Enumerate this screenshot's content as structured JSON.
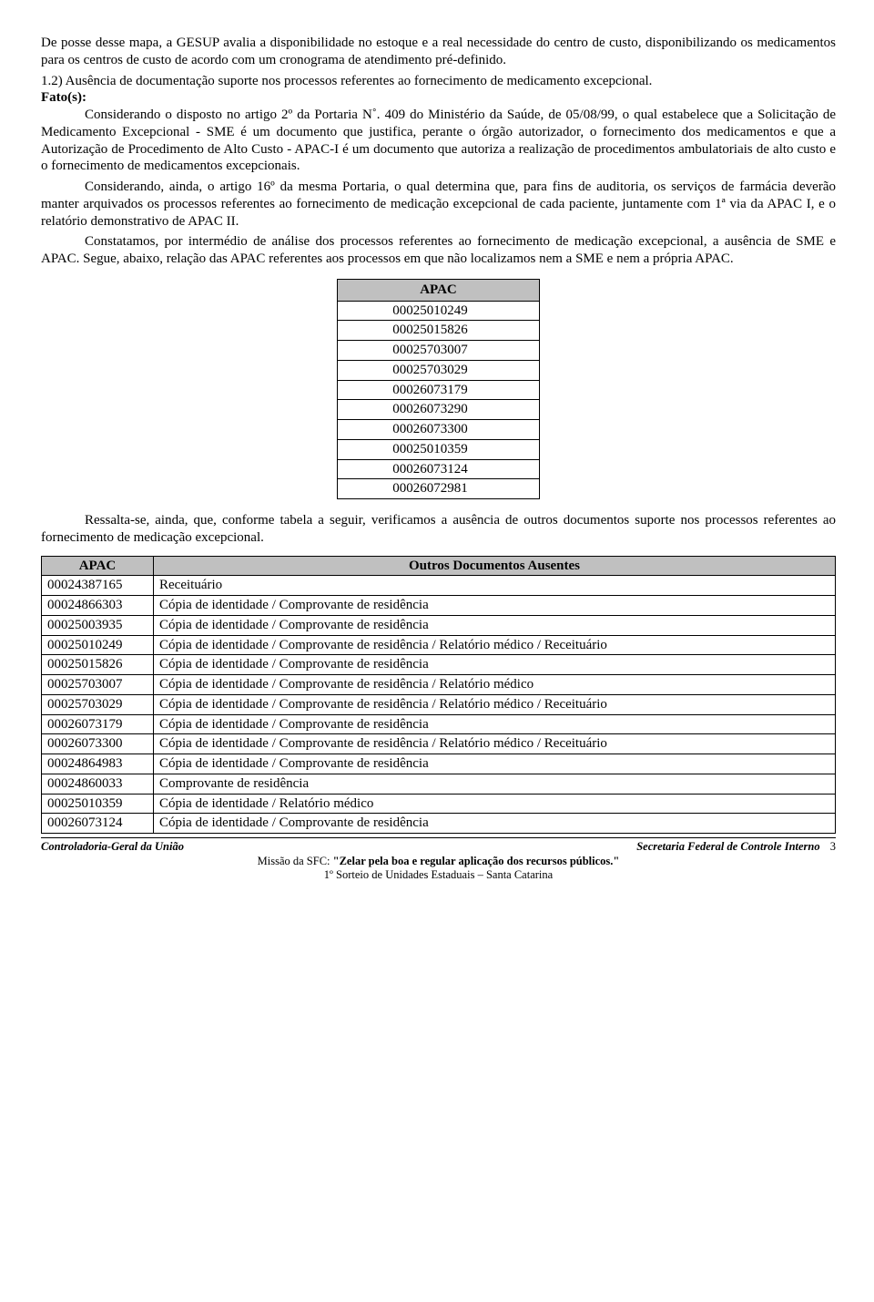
{
  "p1": "De posse desse mapa, a GESUP avalia a disponibilidade no estoque e a real necessidade do centro de custo, disponibilizando os medicamentos para os centros de custo de acordo com um cronograma de atendimento pré-definido.",
  "heading12": "1.2) Ausência de documentação suporte nos processos referentes ao fornecimento de medicamento excepcional.",
  "fatos_label": "Fato(s):",
  "p2a": "Considerando o disposto no artigo 2º da Portaria N˚. 409 do Ministério da Saúde, de 05/08/99, o qual estabelece que a Solicitação de Medicamento Excepcional - SME é um documento que justifica, perante o órgão autorizador, o fornecimento dos medicamentos e que a Autorização de Procedimento de Alto Custo - APAC-I é um documento que autoriza a realização de procedimentos ambulatoriais de alto custo e o fornecimento de medicamentos excepcionais.",
  "p2b": "Considerando, ainda, o artigo 16º da mesma Portaria, o qual determina que, para fins de auditoria, os serviços de farmácia deverão manter arquivados os processos referentes ao fornecimento de medicação excepcional de cada paciente, juntamente com 1ª via da APAC I, e o relatório demonstrativo de APAC II.",
  "p2c": "Constatamos, por intermédio de análise dos processos referentes ao fornecimento de medicação excepcional, a ausência de SME e APAC. Segue, abaixo, relação das APAC referentes aos processos em que não localizamos nem a SME e nem a própria APAC.",
  "apac_header": "APAC",
  "apac_rows": [
    "00025010249",
    "00025015826",
    "00025703007",
    "00025703029",
    "00026073179",
    "00026073290",
    "00026073300",
    "00025010359",
    "00026073124",
    "00026072981"
  ],
  "p3": "Ressalta-se, ainda, que, conforme tabela a seguir, verificamos a ausência de outros documentos suporte nos processos referentes ao fornecimento de medicação excepcional.",
  "docs_header_a": "APAC",
  "docs_header_b": "Outros Documentos Ausentes",
  "docs_rows": [
    {
      "a": "00024387165",
      "b": "Receituário"
    },
    {
      "a": "00024866303",
      "b": "Cópia de identidade / Comprovante de residência"
    },
    {
      "a": "00025003935",
      "b": "Cópia de identidade / Comprovante de residência"
    },
    {
      "a": "00025010249",
      "b": "Cópia de identidade / Comprovante de residência / Relatório médico / Receituário"
    },
    {
      "a": "00025015826",
      "b": "Cópia de identidade / Comprovante de residência"
    },
    {
      "a": "00025703007",
      "b": "Cópia de identidade / Comprovante de residência / Relatório médico"
    },
    {
      "a": "00025703029",
      "b": "Cópia de identidade / Comprovante de residência / Relatório médico / Receituário"
    },
    {
      "a": "00026073179",
      "b": "Cópia de identidade / Comprovante de residência"
    },
    {
      "a": "00026073300",
      "b": "Cópia de identidade / Comprovante de residência / Relatório médico / Receituário"
    },
    {
      "a": "00024864983",
      "b": "Cópia de identidade / Comprovante de residência"
    },
    {
      "a": "00024860033",
      "b": "Comprovante de residência"
    },
    {
      "a": "00025010359",
      "b": "Cópia de identidade / Relatório médico"
    },
    {
      "a": "00026073124",
      "b": "Cópia de identidade / Comprovante de residência"
    }
  ],
  "footer_left": "Controladoria-Geral da União",
  "footer_right": "Secretaria Federal de Controle Interno",
  "footer_pagenum": "3",
  "footer_line2a": "Missão da SFC: ",
  "footer_line2b": "\"Zelar pela boa e regular aplicação dos recursos públicos.\"",
  "footer_line3": "1º Sorteio de Unidades Estaduais – Santa Catarina"
}
